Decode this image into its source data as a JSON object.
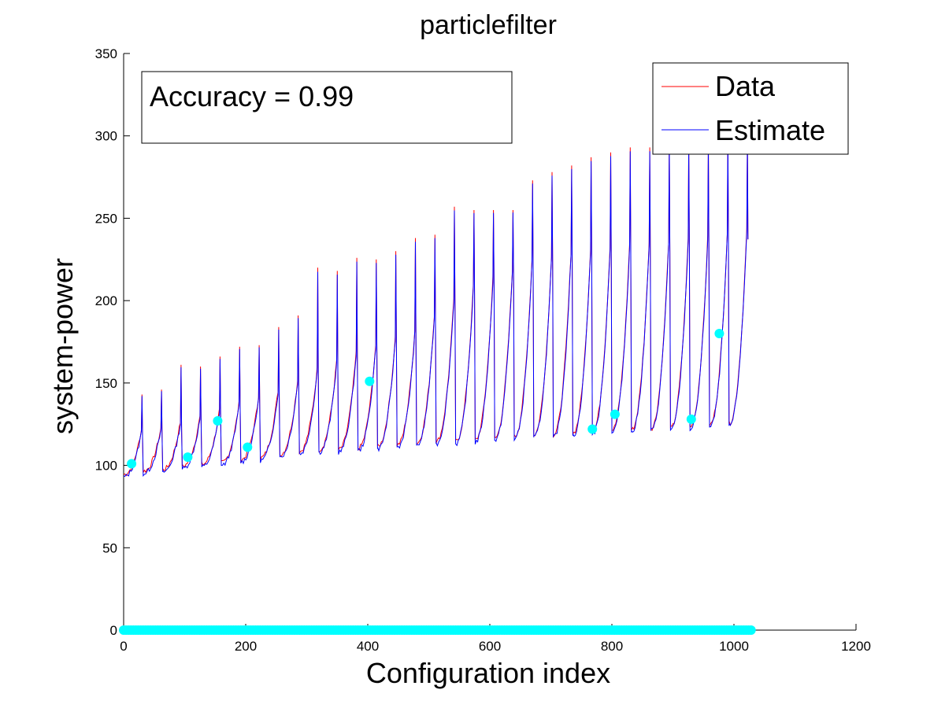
{
  "chart_data": {
    "type": "line",
    "title": "particlefilter",
    "xlabel": "Configuration index",
    "ylabel": "system-power",
    "xlim": [
      0,
      1200
    ],
    "ylim": [
      0,
      350
    ],
    "xticks": [
      0,
      200,
      400,
      600,
      800,
      1000,
      1200
    ],
    "yticks": [
      0,
      50,
      100,
      150,
      200,
      250,
      300,
      350
    ],
    "grid": false,
    "legend_position": "top-right",
    "annotation": "Accuracy = 0.99",
    "colors": {
      "data": "#ff0000",
      "estimate": "#0000ff",
      "markers": "#00ffff",
      "axis": "#000000"
    },
    "series": [
      {
        "name": "Data",
        "color": "#ff0000"
      },
      {
        "name": "Estimate",
        "color": "#0000ff"
      }
    ],
    "cycles": [
      {
        "start": 0,
        "end": 32,
        "low": 93,
        "high": 120,
        "peak": 143
      },
      {
        "start": 32,
        "end": 64,
        "low": 95,
        "high": 121,
        "peak": 146
      },
      {
        "start": 64,
        "end": 96,
        "low": 96,
        "high": 125,
        "peak": 161
      },
      {
        "start": 96,
        "end": 128,
        "low": 98,
        "high": 128,
        "peak": 160
      },
      {
        "start": 128,
        "end": 160,
        "low": 99,
        "high": 132,
        "peak": 166
      },
      {
        "start": 160,
        "end": 192,
        "low": 100,
        "high": 136,
        "peak": 172
      },
      {
        "start": 192,
        "end": 224,
        "low": 102,
        "high": 140,
        "peak": 173
      },
      {
        "start": 224,
        "end": 256,
        "low": 103,
        "high": 144,
        "peak": 184
      },
      {
        "start": 256,
        "end": 288,
        "low": 105,
        "high": 150,
        "peak": 191
      },
      {
        "start": 288,
        "end": 320,
        "low": 107,
        "high": 157,
        "peak": 220
      },
      {
        "start": 320,
        "end": 352,
        "low": 108,
        "high": 162,
        "peak": 218
      },
      {
        "start": 352,
        "end": 384,
        "low": 108,
        "high": 167,
        "peak": 226
      },
      {
        "start": 384,
        "end": 416,
        "low": 109,
        "high": 172,
        "peak": 225
      },
      {
        "start": 416,
        "end": 448,
        "low": 110,
        "high": 176,
        "peak": 230
      },
      {
        "start": 448,
        "end": 480,
        "low": 111,
        "high": 180,
        "peak": 238
      },
      {
        "start": 480,
        "end": 512,
        "low": 112,
        "high": 190,
        "peak": 240
      },
      {
        "start": 512,
        "end": 544,
        "low": 113,
        "high": 200,
        "peak": 257
      },
      {
        "start": 544,
        "end": 576,
        "low": 113,
        "high": 208,
        "peak": 255
      },
      {
        "start": 576,
        "end": 608,
        "low": 114,
        "high": 212,
        "peak": 255
      },
      {
        "start": 608,
        "end": 640,
        "low": 115,
        "high": 218,
        "peak": 255
      },
      {
        "start": 640,
        "end": 672,
        "low": 116,
        "high": 223,
        "peak": 273
      },
      {
        "start": 672,
        "end": 704,
        "low": 117,
        "high": 225,
        "peak": 278
      },
      {
        "start": 704,
        "end": 736,
        "low": 117,
        "high": 228,
        "peak": 282
      },
      {
        "start": 736,
        "end": 768,
        "low": 118,
        "high": 230,
        "peak": 287
      },
      {
        "start": 768,
        "end": 800,
        "low": 119,
        "high": 232,
        "peak": 290
      },
      {
        "start": 800,
        "end": 832,
        "low": 120,
        "high": 233,
        "peak": 293
      },
      {
        "start": 832,
        "end": 864,
        "low": 120,
        "high": 234,
        "peak": 293
      },
      {
        "start": 864,
        "end": 896,
        "low": 121,
        "high": 235,
        "peak": 298
      },
      {
        "start": 896,
        "end": 928,
        "low": 121,
        "high": 236,
        "peak": 296
      },
      {
        "start": 928,
        "end": 960,
        "low": 122,
        "high": 237,
        "peak": 297
      },
      {
        "start": 960,
        "end": 992,
        "low": 123,
        "high": 239,
        "peak": 300
      },
      {
        "start": 992,
        "end": 1024,
        "low": 124,
        "high": 242,
        "peak": 300
      }
    ],
    "highlight_points": [
      {
        "x": 13,
        "y": 101
      },
      {
        "x": 105,
        "y": 105
      },
      {
        "x": 154,
        "y": 127
      },
      {
        "x": 203,
        "y": 111
      },
      {
        "x": 403,
        "y": 151
      },
      {
        "x": 768,
        "y": 122
      },
      {
        "x": 805,
        "y": 131
      },
      {
        "x": 930,
        "y": 128
      },
      {
        "x": 976,
        "y": 180
      }
    ],
    "baseline_markers": {
      "x_start": 0,
      "x_end": 1028,
      "y": 0
    }
  }
}
